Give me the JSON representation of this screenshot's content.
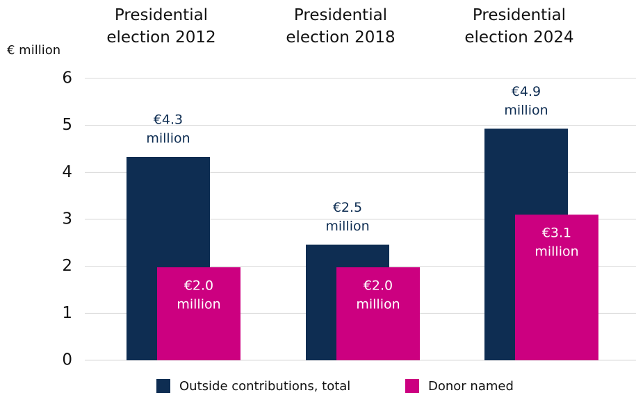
{
  "chart_data": {
    "type": "bar",
    "y_label": "€ million",
    "categories": [
      "Presidential\nelection 2012",
      "Presidential\nelection 2018",
      "Presidential\nelection 2024"
    ],
    "series": [
      {
        "name": "Outside contributions, total",
        "color": "#0e2d52",
        "values": [
          4.33,
          2.46,
          4.93
        ],
        "value_labels": [
          "€4.3\nmillion",
          "€2.5\nmillion",
          "€4.9\nmillion"
        ]
      },
      {
        "name": "Donor named",
        "color": "#cc0080",
        "values": [
          1.98,
          1.98,
          3.1
        ],
        "value_labels": [
          "€2.0\nmillion",
          "€2.0\nmillion",
          "€3.1\nmillion"
        ]
      }
    ],
    "ylim": [
      0,
      6
    ],
    "yticks": [
      0,
      1,
      2,
      3,
      4,
      5,
      6
    ],
    "grid": true,
    "legend": "bottom"
  }
}
